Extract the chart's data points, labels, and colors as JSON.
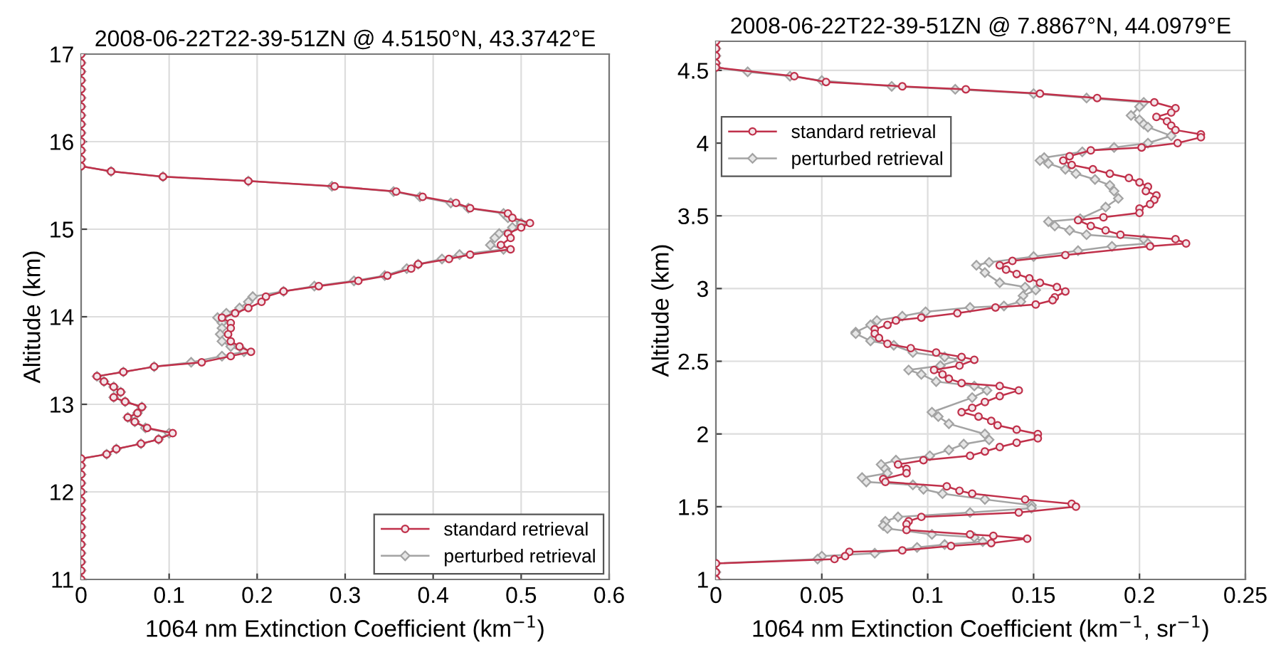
{
  "chart_data": [
    {
      "type": "line",
      "title": "2008-06-22T22-39-51ZN @ 4.5150°N, 43.3742°E",
      "xlabel": "1064 nm Extinction Coefficient (km$^{−1}$)",
      "ylabel": "Altitude (km)",
      "xlim": [
        0,
        0.6
      ],
      "xticks": [
        0,
        0.1,
        0.2,
        0.3,
        0.4,
        0.5,
        0.6
      ],
      "ylim": [
        11,
        17
      ],
      "yticks": [
        11,
        12,
        13,
        14,
        15,
        16,
        17
      ],
      "grid": true,
      "legend": "bottom right",
      "line_style": "solid",
      "series": [
        {
          "name": "standard retrieval",
          "color": "#c0304a",
          "marker": "circle",
          "x": [
            0,
            0,
            0,
            0,
            0,
            0,
            0,
            0,
            0,
            0,
            0,
            0,
            0,
            0,
            0.034,
            0.093,
            0.19,
            0.288,
            0.358,
            0.388,
            0.426,
            0.442,
            0.485,
            0.49,
            0.51,
            0.5,
            0.485,
            0.488,
            0.477,
            0.488,
            0.442,
            0.418,
            0.383,
            0.375,
            0.348,
            0.315,
            0.27,
            0.23,
            0.21,
            0.205,
            0.19,
            0.175,
            0.16,
            0.17,
            0.17,
            0.167,
            0.17,
            0.18,
            0.193,
            0.17,
            0.137,
            0.083,
            0.048,
            0.018,
            0.026,
            0.037,
            0.045,
            0.037,
            0.05,
            0.069,
            0.064,
            0.053,
            0.061,
            0.075,
            0.104,
            0.088,
            0.068,
            0.04,
            0.029,
            0,
            0,
            0,
            0,
            0,
            0,
            0,
            0,
            0,
            0,
            0,
            0,
            0,
            0,
            0
          ],
          "values": [
            17,
            16.9,
            16.8,
            16.7,
            16.6,
            16.5,
            16.4,
            16.3,
            16.2,
            16.1,
            16,
            15.9,
            15.8,
            15.72,
            15.66,
            15.6,
            15.55,
            15.49,
            15.43,
            15.37,
            15.3,
            15.24,
            15.18,
            15.13,
            15.07,
            15.02,
            14.95,
            14.9,
            14.82,
            14.77,
            14.71,
            14.66,
            14.6,
            14.55,
            14.47,
            14.41,
            14.35,
            14.29,
            14.23,
            14.17,
            14.1,
            14.04,
            13.99,
            13.93,
            13.87,
            13.8,
            13.72,
            13.66,
            13.6,
            13.55,
            13.48,
            13.43,
            13.37,
            13.32,
            13.26,
            13.2,
            13.14,
            13.08,
            13.03,
            12.97,
            12.9,
            12.85,
            12.8,
            12.73,
            12.67,
            12.6,
            12.55,
            12.49,
            12.43,
            12.38,
            12.3,
            12.2,
            12.1,
            12,
            11.9,
            11.8,
            11.7,
            11.6,
            11.5,
            11.4,
            11.3,
            11.2,
            11.1,
            11
          ]
        },
        {
          "name": "perturbed retrieval",
          "color": "#a3a3a3",
          "marker": "diamond",
          "x": [
            0,
            0,
            0,
            0,
            0,
            0,
            0,
            0,
            0,
            0,
            0,
            0,
            0,
            0,
            0.034,
            0.093,
            0.19,
            0.285,
            0.355,
            0.385,
            0.42,
            0.44,
            0.48,
            0.485,
            0.5,
            0.49,
            0.475,
            0.47,
            0.465,
            0.48,
            0.43,
            0.41,
            0.383,
            0.37,
            0.345,
            0.31,
            0.265,
            0.23,
            0.195,
            0.19,
            0.18,
            0.165,
            0.155,
            0.16,
            0.16,
            0.158,
            0.16,
            0.17,
            0.185,
            0.16,
            0.125,
            0.083,
            0.048,
            0.018,
            0.026,
            0.037,
            0.045,
            0.037,
            0.05,
            0.069,
            0.064,
            0.053,
            0.061,
            0.073,
            0.1,
            0.088,
            0.068,
            0.04,
            0.029,
            0,
            0,
            0,
            0,
            0,
            0,
            0,
            0,
            0,
            0,
            0,
            0,
            0,
            0,
            0
          ],
          "values": [
            17,
            16.9,
            16.8,
            16.7,
            16.6,
            16.5,
            16.4,
            16.3,
            16.2,
            16.1,
            16,
            15.9,
            15.8,
            15.72,
            15.66,
            15.6,
            15.55,
            15.49,
            15.43,
            15.37,
            15.3,
            15.24,
            15.18,
            15.13,
            15.07,
            15.02,
            14.95,
            14.9,
            14.82,
            14.77,
            14.71,
            14.66,
            14.6,
            14.55,
            14.47,
            14.41,
            14.35,
            14.29,
            14.23,
            14.17,
            14.1,
            14.04,
            13.99,
            13.93,
            13.87,
            13.8,
            13.72,
            13.66,
            13.6,
            13.55,
            13.48,
            13.43,
            13.37,
            13.32,
            13.26,
            13.2,
            13.14,
            13.08,
            13.03,
            12.97,
            12.9,
            12.85,
            12.8,
            12.73,
            12.67,
            12.6,
            12.55,
            12.49,
            12.43,
            12.38,
            12.3,
            12.2,
            12.1,
            12,
            11.9,
            11.8,
            11.7,
            11.6,
            11.5,
            11.4,
            11.3,
            11.2,
            11.1,
            11
          ]
        }
      ]
    },
    {
      "type": "line",
      "title": "2008-06-22T22-39-51ZN @ 7.8867°N, 44.0979°E",
      "xlabel": "1064 nm Extinction Coefficient (km$^{−1}$, sr$^{−1}$)",
      "ylabel": "Altitude (km)",
      "xlim": [
        0,
        0.25
      ],
      "xticks": [
        0,
        0.05,
        0.1,
        0.15,
        0.2,
        0.25
      ],
      "ylim": [
        1,
        4.7
      ],
      "yticks": [
        1,
        1.5,
        2,
        2.5,
        3,
        3.5,
        4,
        4.5
      ],
      "grid": true,
      "legend": "top left",
      "line_style": "solid",
      "series": [
        {
          "name": "standard retrieval",
          "color": "#c0304a",
          "marker": "circle",
          "x": [
            0,
            0,
            0,
            0,
            0,
            0.037,
            0.052,
            0.088,
            0.118,
            0.153,
            0.18,
            0.207,
            0.217,
            0.215,
            0.208,
            0.213,
            0.215,
            0.217,
            0.229,
            0.229,
            0.218,
            0.201,
            0.177,
            0.167,
            0.164,
            0.168,
            0.178,
            0.186,
            0.195,
            0.2,
            0.204,
            0.203,
            0.208,
            0.207,
            0.205,
            0.2,
            0.2,
            0.183,
            0.171,
            0.177,
            0.184,
            0.191,
            0.217,
            0.222,
            0.205,
            0.165,
            0.14,
            0.134,
            0.137,
            0.142,
            0.148,
            0.153,
            0.161,
            0.165,
            0.16,
            0.159,
            0.151,
            0.132,
            0.114,
            0.097,
            0.085,
            0.081,
            0.075,
            0.075,
            0.077,
            0.081,
            0.092,
            0.104,
            0.116,
            0.122,
            0.115,
            0.103,
            0.107,
            0.11,
            0.116,
            0.134,
            0.143,
            0.134,
            0.127,
            0.121,
            0.116,
            0.124,
            0.13,
            0.133,
            0.142,
            0.152,
            0.152,
            0.142,
            0.134,
            0.127,
            0.12,
            0.098,
            0.086,
            0.09,
            0.09,
            0.079,
            0.08,
            0.109,
            0.115,
            0.121,
            0.146,
            0.168,
            0.17,
            0.143,
            0.097,
            0.091,
            0.09,
            0.09,
            0.12,
            0.131,
            0.147,
            0.13,
            0.111,
            0.088,
            0.063,
            0.061,
            0.056,
            0,
            0,
            0
          ],
          "values": [
            4.7,
            4.65,
            4.6,
            4.55,
            4.52,
            4.46,
            4.42,
            4.39,
            4.37,
            4.34,
            4.31,
            4.28,
            4.24,
            4.21,
            4.18,
            4.15,
            4.12,
            4.09,
            4.06,
            4.04,
            4,
            3.97,
            3.95,
            3.91,
            3.88,
            3.85,
            3.82,
            3.79,
            3.76,
            3.73,
            3.7,
            3.67,
            3.64,
            3.61,
            3.58,
            3.55,
            3.52,
            3.49,
            3.47,
            3.43,
            3.4,
            3.37,
            3.34,
            3.31,
            3.29,
            3.23,
            3.19,
            3.16,
            3.13,
            3.1,
            3.07,
            3.04,
            3.01,
            2.98,
            2.94,
            2.92,
            2.89,
            2.87,
            2.83,
            2.8,
            2.78,
            2.75,
            2.72,
            2.69,
            2.66,
            2.62,
            2.59,
            2.56,
            2.53,
            2.51,
            2.47,
            2.44,
            2.41,
            2.38,
            2.35,
            2.33,
            2.3,
            2.26,
            2.22,
            2.18,
            2.15,
            2.12,
            2.09,
            2.06,
            2.03,
            2,
            1.97,
            1.94,
            1.91,
            1.88,
            1.85,
            1.82,
            1.79,
            1.76,
            1.73,
            1.69,
            1.67,
            1.64,
            1.61,
            1.59,
            1.55,
            1.52,
            1.5,
            1.46,
            1.43,
            1.4,
            1.38,
            1.34,
            1.31,
            1.3,
            1.28,
            1.25,
            1.23,
            1.2,
            1.19,
            1.16,
            1.14,
            1.11,
            1.05,
            1
          ]
        },
        {
          "name": "perturbed retrieval",
          "color": "#a3a3a3",
          "marker": "diamond",
          "x": [
            0,
            0,
            0,
            0,
            0,
            0.015,
            0.035,
            0.05,
            0.083,
            0.113,
            0.15,
            0.175,
            0.202,
            0.2,
            0.196,
            0.2,
            0.202,
            0.204,
            0.215,
            0.204,
            0.188,
            0.173,
            0.155,
            0.153,
            0.157,
            0.165,
            0.17,
            0.179,
            0.186,
            0.188,
            0.19,
            0.184,
            0.172,
            0.157,
            0.16,
            0.167,
            0.175,
            0.202,
            0.204,
            0.187,
            0.171,
            0.15,
            0.129,
            0.123,
            0.127,
            0.134,
            0.146,
            0.151,
            0.145,
            0.144,
            0.136,
            0.12,
            0.099,
            0.088,
            0.076,
            0.073,
            0.066,
            0.066,
            0.073,
            0.084,
            0.093,
            0.108,
            0.115,
            0.106,
            0.091,
            0.097,
            0.104,
            0.122,
            0.128,
            0.121,
            0.102,
            0.105,
            0.11,
            0.127,
            0.129,
            0.117,
            0.11,
            0.101,
            0.085,
            0.078,
            0.08,
            0.081,
            0.069,
            0.071,
            0.093,
            0.098,
            0.107,
            0.127,
            0.149,
            0.149,
            0.12,
            0.086,
            0.08,
            0.079,
            0.081,
            0.102,
            0.122,
            0.126,
            0.108,
            0.095,
            0.075,
            0.05,
            0.048,
            0,
            0,
            0
          ],
          "values": [
            4.7,
            4.65,
            4.6,
            4.55,
            4.52,
            4.49,
            4.46,
            4.43,
            4.39,
            4.37,
            4.34,
            4.31,
            4.28,
            4.25,
            4.19,
            4.16,
            4.13,
            4.11,
            4.05,
            4,
            3.97,
            3.94,
            3.9,
            3.88,
            3.86,
            3.82,
            3.79,
            3.75,
            3.71,
            3.67,
            3.62,
            3.56,
            3.48,
            3.46,
            3.43,
            3.4,
            3.37,
            3.34,
            3.31,
            3.29,
            3.26,
            3.22,
            3.18,
            3.16,
            3.11,
            3.04,
            3.01,
            2.99,
            2.95,
            2.91,
            2.88,
            2.87,
            2.84,
            2.81,
            2.78,
            2.75,
            2.7,
            2.69,
            2.64,
            2.61,
            2.56,
            2.53,
            2.51,
            2.47,
            2.44,
            2.41,
            2.36,
            2.33,
            2.3,
            2.25,
            2.15,
            2.12,
            2.07,
            2,
            1.96,
            1.93,
            1.89,
            1.85,
            1.82,
            1.79,
            1.76,
            1.73,
            1.7,
            1.67,
            1.65,
            1.62,
            1.59,
            1.55,
            1.51,
            1.49,
            1.46,
            1.43,
            1.4,
            1.37,
            1.35,
            1.31,
            1.29,
            1.26,
            1.24,
            1.22,
            1.18,
            1.16,
            1.14,
            1.11,
            1.05,
            1
          ]
        }
      ]
    }
  ]
}
